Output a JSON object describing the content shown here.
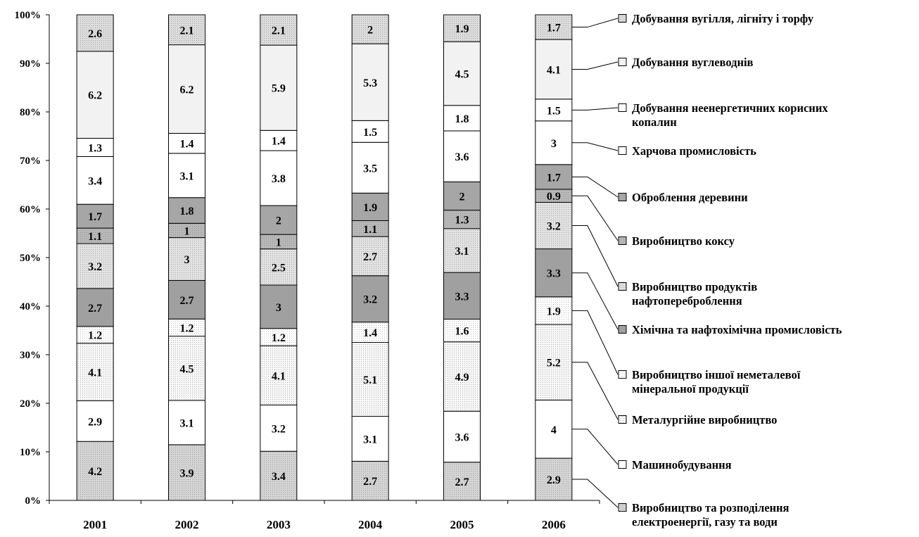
{
  "chart_data": {
    "type": "bar",
    "stacked": true,
    "percent": true,
    "categories": [
      "2001",
      "2002",
      "2003",
      "2004",
      "2005",
      "2006"
    ],
    "ylim": [
      0,
      100
    ],
    "y_ticks": [
      "0%",
      "10%",
      "20%",
      "30%",
      "40%",
      "50%",
      "60%",
      "70%",
      "80%",
      "90%",
      "100%"
    ],
    "grid": false,
    "legend_position": "right",
    "series": [
      {
        "name": "Виробництво та розподілення електроенергії, газу та води",
        "label_lines": [
          "Виробництво та розподілення",
          "електроенергії, газу та води"
        ],
        "values": [
          4.2,
          3.9,
          3.4,
          2.7,
          2.7,
          2.9
        ],
        "fill": "#d4d4d4",
        "pattern": "dots"
      },
      {
        "name": "Машинобудування",
        "label_lines": [
          "Машинобудування"
        ],
        "values": [
          2.9,
          3.1,
          3.2,
          3.1,
          3.6,
          4
        ],
        "fill": "#ffffff",
        "pattern": "none"
      },
      {
        "name": "Металургійне виробництво",
        "label_lines": [
          "Металургійне виробництво"
        ],
        "values": [
          4.1,
          4.5,
          4.1,
          5.1,
          4.9,
          5.2
        ],
        "fill": "#f7f7f7",
        "pattern": "dots"
      },
      {
        "name": "Виробництво іншої неметалевої мінеральної продукції",
        "label_lines": [
          "Виробництво іншої неметалевої",
          "мінеральної продукції"
        ],
        "values": [
          1.2,
          1.2,
          1.2,
          1.4,
          1.6,
          1.9
        ],
        "fill": "#ffffff",
        "pattern": "dots"
      },
      {
        "name": "Хімічна та нафтохімічна промисловість",
        "label_lines": [
          "Хімічна та нафтохімічна промисловість"
        ],
        "values": [
          2.7,
          2.7,
          3,
          3.2,
          3.3,
          3.3
        ],
        "fill": "#a0a0a0",
        "pattern": "none"
      },
      {
        "name": "Виробництво продуктів нафтопереброблення",
        "label_lines": [
          "Виробництво продуктів",
          "нафтопереброблення"
        ],
        "values": [
          3.2,
          3,
          2.5,
          2.7,
          3.1,
          3.2
        ],
        "fill": "#e2e2e2",
        "pattern": "dots"
      },
      {
        "name": "Виробництво коксу",
        "label_lines": [
          "Виробництво коксу"
        ],
        "values": [
          1.1,
          1,
          1,
          1.1,
          1.3,
          0.9
        ],
        "fill": "#b8b8b8",
        "pattern": "dots"
      },
      {
        "name": "Оброблення деревини",
        "label_lines": [
          "Оброблення деревини"
        ],
        "values": [
          1.7,
          1.8,
          2,
          1.9,
          2,
          1.7
        ],
        "fill": "#a6a6a6",
        "pattern": "none"
      },
      {
        "name": "Харчова промисловість",
        "label_lines": [
          "Харчова промисловість"
        ],
        "values": [
          3.4,
          3.1,
          3.8,
          3.5,
          3.6,
          3
        ],
        "fill": "#ffffff",
        "pattern": "none"
      },
      {
        "name": "Добування неенергетичних корисних копалин",
        "label_lines": [
          "Добування неенергетичних корисних",
          "копалин"
        ],
        "values": [
          1.3,
          1.4,
          1.4,
          1.5,
          1.8,
          1.5
        ],
        "fill": "#ffffff",
        "pattern": "none"
      },
      {
        "name": "Добування вуглеводнів",
        "label_lines": [
          "Добування вуглеводнів"
        ],
        "values": [
          6.2,
          6.2,
          5.9,
          5.3,
          4.5,
          4.1
        ],
        "fill": "#f2f2f2",
        "pattern": "none"
      },
      {
        "name": "Добування вугілля, лігніту і торфу",
        "label_lines": [
          "Добування вугілля, лігніту і торфу"
        ],
        "values": [
          2.6,
          2.1,
          2.1,
          2,
          1.9,
          1.7
        ],
        "fill": "#dcdcdc",
        "pattern": "dots"
      }
    ]
  }
}
